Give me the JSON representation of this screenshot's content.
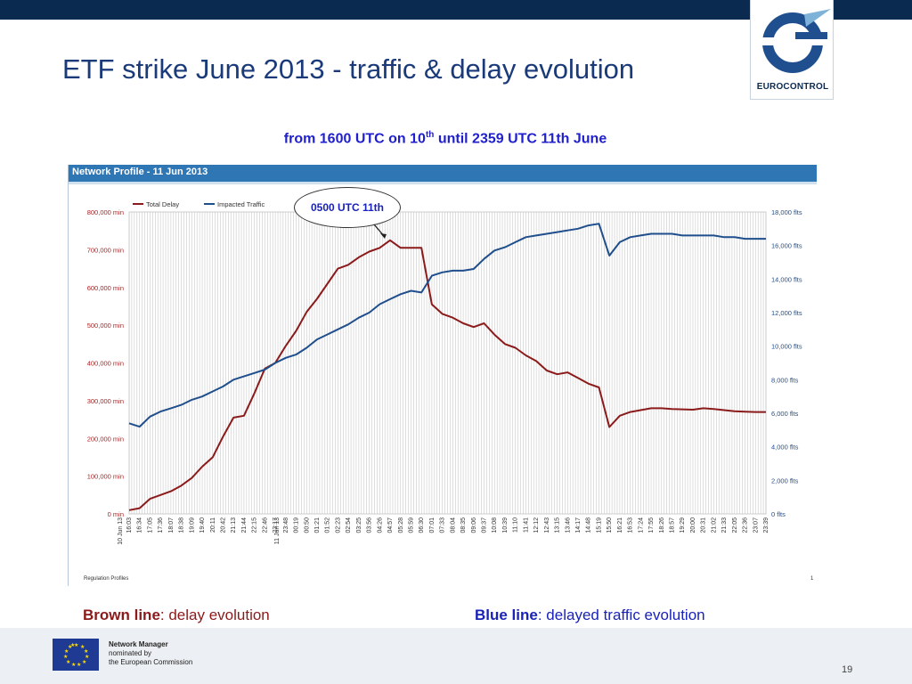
{
  "slide": {
    "title": "ETF strike June 2013 - traffic & delay evolution",
    "subtitle_prefix": "from 1600 UTC on 10",
    "subtitle_sup": "th",
    "subtitle_suffix": " until 2359 UTC 11th June",
    "logo_text": "EUROCONTROL",
    "callout": "0500 UTC 11th",
    "legend_brown_term": "Brown line",
    "legend_brown_desc": ": delay evolution",
    "legend_blue_term": "Blue line",
    "legend_blue_desc": ": delayed traffic evolution",
    "footer_line1": "Network Manager",
    "footer_line2": "nominated by",
    "footer_line3": "the European Commission",
    "page_number": "19",
    "colors": {
      "header": "#0b2a4f",
      "brown": "#8b1a1a",
      "blue": "#1f4e8c",
      "chart_header": "#2f76b5"
    }
  },
  "chart_data": {
    "type": "line",
    "title": "Network Profile -  11 Jun 2013",
    "footer_label": "Regulation Profiles",
    "footer_page": "1",
    "x": [
      "16:03",
      "16:34",
      "17:05",
      "17:36",
      "18:07",
      "18:38",
      "19:09",
      "19:40",
      "20:11",
      "20:42",
      "21:13",
      "21:44",
      "22:15",
      "22:46",
      "23:17",
      "23:48",
      "00:19",
      "00:50",
      "01:21",
      "01:52",
      "02:23",
      "02:54",
      "03:25",
      "03:56",
      "04:26",
      "04:57",
      "05:28",
      "05:59",
      "06:30",
      "07:01",
      "07:33",
      "08:04",
      "08:35",
      "09:06",
      "09:37",
      "10:08",
      "10:39",
      "11:10",
      "11:41",
      "12:12",
      "12:43",
      "13:15",
      "13:46",
      "14:17",
      "14:48",
      "15:19",
      "15:50",
      "16:21",
      "16:53",
      "17:24",
      "17:55",
      "18:26",
      "18:57",
      "19:29",
      "20:00",
      "20:31",
      "21:02",
      "21:33",
      "22:05",
      "22:36",
      "23:07",
      "23:39"
    ],
    "date_labels": [
      {
        "index": 0,
        "text": "10 Jun 13"
      },
      {
        "index": 15,
        "text": "11 Jun 13"
      }
    ],
    "series": [
      {
        "name": "Total Delay",
        "axis": "left",
        "color": "#8b1a1a",
        "values": [
          10000,
          15000,
          40000,
          50000,
          60000,
          75000,
          95000,
          125000,
          150000,
          205000,
          255000,
          260000,
          320000,
          385000,
          400000,
          445000,
          485000,
          535000,
          570000,
          610000,
          650000,
          660000,
          680000,
          695000,
          705000,
          725000,
          705000,
          705000,
          705000,
          555000,
          530000,
          520000,
          505000,
          495000,
          505000,
          475000,
          450000,
          440000,
          420000,
          405000,
          380000,
          370000,
          375000,
          360000,
          345000,
          335000,
          230000,
          260000,
          270000,
          275000,
          280000,
          280000,
          278000,
          277000,
          276000,
          280000,
          278000,
          275000,
          272000,
          271000,
          270000,
          270000
        ]
      },
      {
        "name": "Impacted Traffic",
        "axis": "right",
        "color": "#1f4e8c",
        "values": [
          5400,
          5200,
          5800,
          6100,
          6300,
          6500,
          6800,
          7000,
          7300,
          7600,
          8000,
          8200,
          8400,
          8600,
          9000,
          9300,
          9500,
          9900,
          10400,
          10700,
          11000,
          11300,
          11700,
          12000,
          12500,
          12800,
          13100,
          13300,
          13200,
          14200,
          14400,
          14500,
          14500,
          14600,
          15200,
          15700,
          15900,
          16200,
          16500,
          16600,
          16700,
          16800,
          16900,
          17000,
          17200,
          17300,
          15400,
          16200,
          16500,
          16600,
          16700,
          16700,
          16700,
          16600,
          16600,
          16600,
          16600,
          16500,
          16500,
          16400,
          16400,
          16400
        ]
      }
    ],
    "y_left": {
      "min": 0,
      "max": 800000,
      "ticks": [
        "0 min",
        "100,000 min",
        "200,000 min",
        "300,000 min",
        "400,000 min",
        "500,000 min",
        "600,000 min",
        "700,000 min",
        "800,000 min"
      ]
    },
    "y_right": {
      "min": 0,
      "max": 18000,
      "ticks": [
        "0 flts",
        "2,000 flts",
        "4,000 flts",
        "6,000 flts",
        "8,000 flts",
        "10,000 flts",
        "12,000 flts",
        "14,000 flts",
        "16,000 flts",
        "18,000 flts"
      ]
    },
    "grid": true,
    "legend": "top-left"
  }
}
